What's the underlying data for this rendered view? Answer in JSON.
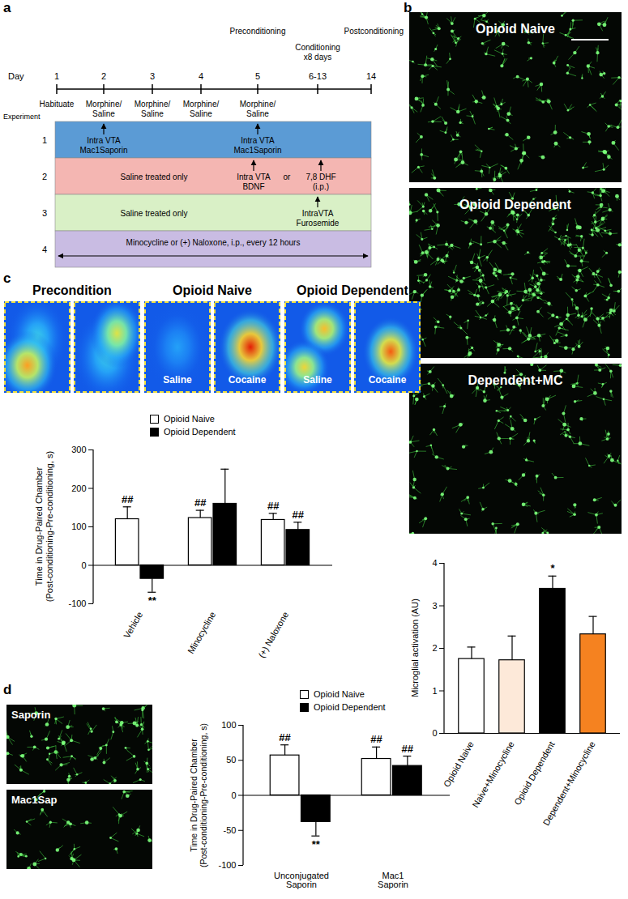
{
  "panel_labels": [
    "a",
    "b",
    "c",
    "d"
  ],
  "timeline": {
    "axis_label": "Day",
    "days": [
      1,
      2,
      3,
      4,
      5,
      "6-13",
      14
    ],
    "phases": [
      "Preconditioning",
      "Conditioning\nx8 days",
      "Postconditioning"
    ],
    "day_notes": [
      "Habituate",
      "Morphine/\nSaline",
      "Morphine/\nSaline",
      "Morphine/\nSaline",
      "Morphine/\nSaline"
    ],
    "experiment_label": "Experiment",
    "experiments": [
      {
        "number": 1,
        "color": "#5b9bd5",
        "notes": [
          "Intra VTA\nMac1Saporin",
          "Intra VTA\nMac1Saporin"
        ]
      },
      {
        "number": 2,
        "color": "#f4b6b2",
        "notes": [
          "Saline treated only",
          "Intra VTA\nBDNF",
          "or",
          "7,8 DHF\n(i.p.)"
        ]
      },
      {
        "number": 3,
        "color": "#d9f0c6",
        "notes": [
          "Saline treated only",
          "IntraVTA\nFurosemide"
        ]
      },
      {
        "number": 4,
        "color": "#c9bce3",
        "notes": [
          "Minocycline or (+) Naloxone, i.p., every 12 hours"
        ]
      }
    ]
  },
  "micrographs": {
    "b": [
      "Opioid Naive",
      "Opioid Dependent",
      "Dependent+MC"
    ],
    "d": [
      "Saporin",
      "Mac1Sap"
    ]
  },
  "heatmaps": {
    "titles": [
      "Precondition",
      "Opioid Naive",
      "Opioid Dependent"
    ],
    "labels": [
      [
        null,
        null
      ],
      [
        "Saline",
        "Cocaine"
      ],
      [
        "Saline",
        "Cocaine"
      ]
    ]
  },
  "chart_data": [
    {
      "type": "bar",
      "categories": [
        "Opioid Naive",
        "Naive+Minocycline",
        "Opioid Dependent",
        "Dependent+Minocycline"
      ],
      "values": [
        1.75,
        1.72,
        3.4,
        2.33
      ],
      "errors": [
        0.28,
        0.57,
        0.3,
        0.42
      ],
      "colors": [
        "#ffffff",
        "#fde9d9",
        "#000000",
        "#f58220"
      ],
      "ylabel": "Microglial activation (AU)",
      "ylim": [
        0,
        4
      ],
      "yticks": [
        0,
        1,
        2,
        3,
        4
      ],
      "annotations": [
        {
          "category": "Opioid Dependent",
          "text": "*"
        }
      ]
    },
    {
      "type": "bar",
      "categories": [
        "Vehicle",
        "Minocycline",
        "(+) Naloxone"
      ],
      "series": [
        {
          "name": "Opioid Naive",
          "color": "#ffffff",
          "values": [
            120,
            123,
            118
          ],
          "errors": [
            32,
            20,
            17
          ]
        },
        {
          "name": "Opioid Dependent",
          "color": "#000000",
          "values": [
            -35,
            160,
            92
          ],
          "errors": [
            35,
            90,
            20
          ]
        }
      ],
      "ylabel": "Time in Drug-Paired Chamber\n(Post-conditioning-Pre-conditioning, s)",
      "ylim": [
        -100,
        300
      ],
      "yticks": [
        -100,
        0,
        100,
        200,
        300
      ],
      "legend": "top-left",
      "annotations": [
        {
          "category": "Vehicle",
          "series": "Opioid Naive",
          "text": "##"
        },
        {
          "category": "Minocycline",
          "series": "Opioid Naive",
          "text": "##"
        },
        {
          "category": "(+) Naloxone",
          "series": "Opioid Naive",
          "text": "##"
        },
        {
          "category": "Vehicle",
          "series": "Opioid Dependent",
          "text": "**"
        },
        {
          "category": "(+) Naloxone",
          "series": "Opioid Dependent",
          "text": "##"
        }
      ]
    },
    {
      "type": "bar",
      "categories": [
        "Unconjugated\nSaporin",
        "Mac1\nSaporin"
      ],
      "series": [
        {
          "name": "Opioid Naive",
          "color": "#ffffff",
          "values": [
            57,
            52
          ],
          "errors": [
            15,
            17
          ]
        },
        {
          "name": "Opioid Dependent",
          "color": "#000000",
          "values": [
            -38,
            42
          ],
          "errors": [
            20,
            14
          ]
        }
      ],
      "ylabel": "Time in Drug-Paired Chamber\n(Post-conditioning-Pre-conditioning, s)",
      "ylim": [
        -100,
        100
      ],
      "yticks": [
        -100,
        -50,
        0,
        50,
        100
      ],
      "legend": "top-left",
      "annotations": [
        {
          "category": "Unconjugated\nSaporin",
          "series": "Opioid Naive",
          "text": "##"
        },
        {
          "category": "Mac1\nSaporin",
          "series": "Opioid Naive",
          "text": "##"
        },
        {
          "category": "Unconjugated\nSaporin",
          "series": "Opioid Dependent",
          "text": "**"
        },
        {
          "category": "Mac1\nSaporin",
          "series": "Opioid Dependent",
          "text": "##"
        }
      ]
    }
  ]
}
